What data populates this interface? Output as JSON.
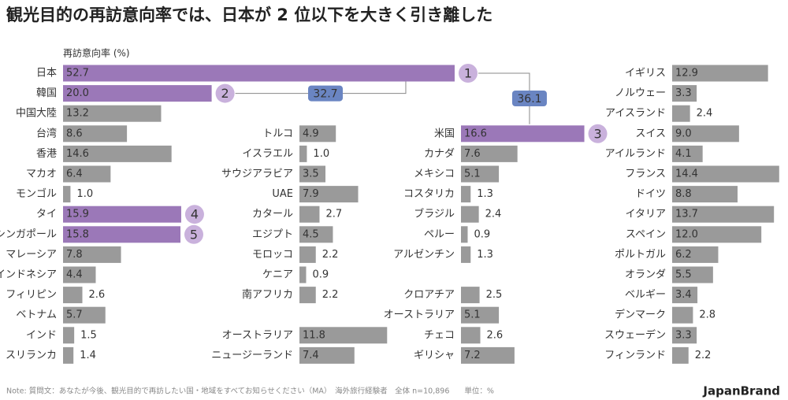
{
  "title": "観光目的の再訪意向率では、日本が 2 位以下を大きく引き離した",
  "note": "Note: 質問文：あなたが今後、観光目的で再訪したい国・地域をすべてお知らせください（MA）　海外旅行経験者　全体 n=10,896　　単位：%",
  "brand": "JapanBrand",
  "annotations": [
    "32.7",
    "36.1"
  ],
  "chart_data": [
    {
      "type": "bar",
      "axis_label": "再訪意向率 (%)",
      "color": "#9a9a9a",
      "highlight_color": "#9b78b8",
      "categories": [
        "日本",
        "韓国",
        "中国大陸",
        "台湾",
        "香港",
        "マカオ",
        "モンゴル",
        "タイ",
        "シンガポール",
        "マレーシア",
        "インドネシア",
        "フィリピン",
        "ベトナム",
        "インド",
        "スリランカ"
      ],
      "values": [
        52.7,
        20,
        13.2,
        8.6,
        14.6,
        6.4,
        1,
        15.9,
        15.8,
        7.8,
        4.4,
        2.6,
        5.7,
        1.5,
        1.4
      ],
      "value_labels": [
        "52.7",
        "20.0",
        "13.2",
        "8.6",
        "14.6",
        "6.4",
        "1.0",
        "15.9",
        "15.8",
        "7.8",
        "4.4",
        "2.6",
        "5.7",
        "1.5",
        "1.4"
      ],
      "ranks": [
        1,
        2,
        null,
        null,
        null,
        null,
        null,
        4,
        5,
        null,
        null,
        null,
        null,
        null,
        null
      ]
    },
    {
      "type": "bar",
      "color": "#9a9a9a",
      "highlight_color": "#9b78b8",
      "categories": [
        "トルコ",
        "イスラエル",
        "サウジアラビア",
        "UAE",
        "カタール",
        "エジプト",
        "モロッコ",
        "ケニア",
        "南アフリカ",
        null,
        "オーストラリア",
        "ニュージーランド"
      ],
      "values": [
        4.9,
        1,
        3.5,
        7.9,
        2.7,
        4.5,
        2.2,
        0.9,
        2.2,
        null,
        11.8,
        7.4
      ],
      "value_labels": [
        "4.9",
        "1.0",
        "3.5",
        "7.9",
        "2.7",
        "4.5",
        "2.2",
        "0.9",
        "2.2",
        null,
        "11.8",
        "7.4"
      ],
      "ranks": [
        null,
        null,
        null,
        null,
        null,
        null,
        null,
        null,
        null,
        null,
        null,
        null
      ]
    },
    {
      "type": "bar",
      "color": "#9a9a9a",
      "highlight_color": "#9b78b8",
      "categories": [
        "米国",
        "カナダ",
        "メキシコ",
        "コスタリカ",
        "ブラジル",
        "ペルー",
        "アルゼンチン",
        null,
        "クロアチア",
        "オーストラリア",
        "チェコ",
        "ギリシャ"
      ],
      "values": [
        16.6,
        7.6,
        5.1,
        1.3,
        2.4,
        0.9,
        1.3,
        null,
        2.5,
        5.1,
        2.6,
        7.2
      ],
      "value_labels": [
        "16.6",
        "7.6",
        "5.1",
        "1.3",
        "2.4",
        "0.9",
        "1.3",
        null,
        "2.5",
        "5.1",
        "2.6",
        "7.2"
      ],
      "ranks": [
        3,
        null,
        null,
        null,
        null,
        null,
        null,
        null,
        null,
        null,
        null,
        null
      ]
    },
    {
      "type": "bar",
      "color": "#9a9a9a",
      "highlight_color": "#9b78b8",
      "categories": [
        "イギリス",
        "ノルウェー",
        "アイスランド",
        "スイス",
        "アイルランド",
        "フランス",
        "ドイツ",
        "イタリア",
        "スペイン",
        "ポルトガル",
        "オランダ",
        "ベルギー",
        "デンマーク",
        "スウェーデン",
        "フィンランド"
      ],
      "values": [
        12.9,
        3.3,
        2.4,
        9,
        4.1,
        14.4,
        8.8,
        13.7,
        12,
        6.2,
        5.5,
        3.4,
        2.8,
        3.3,
        2.2
      ],
      "value_labels": [
        "12.9",
        "3.3",
        "2.4",
        "9.0",
        "4.1",
        "14.4",
        "8.8",
        "13.7",
        "12.0",
        "6.2",
        "5.5",
        "3.4",
        "2.8",
        "3.3",
        "2.2"
      ],
      "ranks": [
        null,
        null,
        null,
        null,
        null,
        null,
        null,
        null,
        null,
        null,
        null,
        null,
        null,
        null,
        null
      ]
    }
  ]
}
